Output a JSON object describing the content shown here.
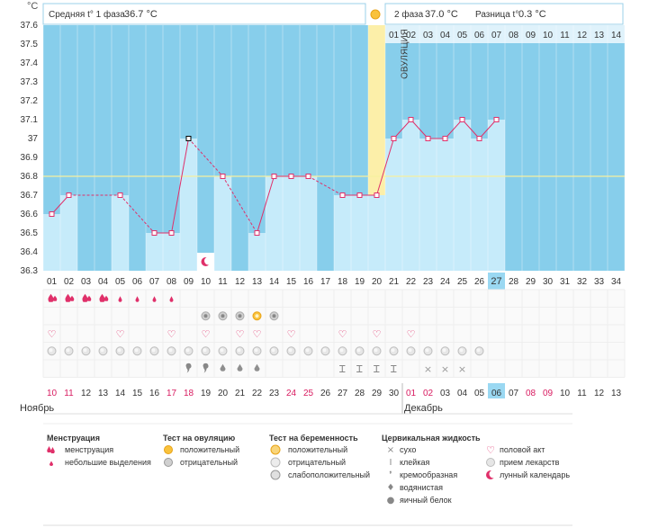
{
  "header": {
    "phase1_label": "Средняя t° 1 фаза",
    "phase1_value": "36.7 °C",
    "phase2_label": "2 фаза",
    "phase2_value": "37.0 °C",
    "diff_label": "Разница t°",
    "diff_value": "0.3 °C",
    "unit": "°C"
  },
  "chart_data": {
    "type": "line",
    "title": "",
    "ylabel": "°C",
    "ylim": [
      36.3,
      37.6
    ],
    "yticks": [
      "37.6",
      "37.5",
      "37.4",
      "37.3",
      "37.2",
      "37.1",
      "37",
      "36.9",
      "36.8",
      "36.7",
      "36.6",
      "36.5",
      "36.4",
      "36.3"
    ],
    "cycle_days": [
      "01",
      "02",
      "03",
      "04",
      "05",
      "06",
      "07",
      "08",
      "09",
      "10",
      "11",
      "12",
      "13",
      "14",
      "15",
      "16",
      "17",
      "18",
      "19",
      "20",
      "21",
      "22",
      "23",
      "24",
      "25",
      "26",
      "27",
      "28",
      "29",
      "30",
      "31",
      "32",
      "33",
      "34"
    ],
    "phase2_days": [
      "01",
      "02",
      "03",
      "04",
      "05",
      "06",
      "07",
      "08",
      "09",
      "10",
      "11",
      "12",
      "13",
      "14"
    ],
    "calendar_dates": [
      "10",
      "11",
      "12",
      "13",
      "14",
      "15",
      "16",
      "17",
      "18",
      "19",
      "20",
      "21",
      "22",
      "23",
      "24",
      "25",
      "26",
      "27",
      "28",
      "29",
      "30",
      "01",
      "02",
      "03",
      "04",
      "05",
      "06",
      "07",
      "08",
      "09",
      "10",
      "11",
      "12",
      "13"
    ],
    "weekend_dates_idx": [
      0,
      1,
      7,
      8,
      14,
      15,
      21,
      22,
      28,
      29
    ],
    "today_idx": 26,
    "months": [
      "Ноябрь",
      "Декабрь"
    ],
    "temperatures": [
      36.6,
      36.7,
      null,
      null,
      36.7,
      null,
      36.5,
      36.5,
      37.0,
      null,
      36.8,
      null,
      36.5,
      36.8,
      36.8,
      36.8,
      null,
      36.7,
      36.7,
      36.7,
      37.0,
      37.1,
      37.0,
      37.0,
      37.1,
      37.0,
      37.1,
      null,
      null,
      null,
      null,
      null,
      null,
      null
    ],
    "coverline": 36.8,
    "ovulation_day_idx": 19,
    "ovulation_label": "ОВУЛЯЦИЯ",
    "moon_day_idx": 9,
    "rows": {
      "menstruation": [
        "big",
        "big",
        "big",
        "big",
        "small",
        "small",
        "small",
        "small",
        "",
        "",
        "",
        "",
        "",
        "",
        "",
        "",
        "",
        "",
        "",
        "",
        "",
        "",
        "",
        "",
        "",
        "",
        "",
        "",
        "",
        "",
        "",
        "",
        "",
        ""
      ],
      "ovulation_test": [
        "",
        "",
        "",
        "",
        "",
        "",
        "",
        "",
        "",
        "neg",
        "neg",
        "neg",
        "pos",
        "neg",
        "",
        "",
        "",
        "",
        "",
        "",
        "",
        "",
        "",
        "",
        "",
        "",
        "",
        "",
        "",
        "",
        "",
        "",
        "",
        ""
      ],
      "sex": [
        true,
        false,
        false,
        false,
        true,
        false,
        false,
        true,
        false,
        true,
        false,
        true,
        true,
        false,
        true,
        false,
        false,
        true,
        false,
        true,
        false,
        true,
        false,
        false,
        false,
        false,
        false,
        false,
        false,
        false,
        false,
        false,
        false,
        false
      ],
      "meds": [
        true,
        true,
        true,
        true,
        true,
        true,
        true,
        true,
        true,
        true,
        true,
        true,
        true,
        true,
        true,
        true,
        true,
        true,
        true,
        true,
        true,
        true,
        true,
        true,
        true,
        true,
        false,
        false,
        false,
        false,
        false,
        false,
        false,
        false
      ],
      "fluid": [
        "",
        "",
        "",
        "",
        "",
        "",
        "",
        "",
        "creamy",
        "creamy",
        "watery",
        "watery",
        "watery",
        "",
        "",
        "",
        "",
        "sticky",
        "sticky",
        "sticky",
        "sticky",
        "",
        "dry",
        "dry",
        "dry",
        "",
        "",
        "",
        "",
        "",
        "",
        "",
        "",
        ""
      ]
    }
  },
  "legend": {
    "menstruation": {
      "title": "Менструация",
      "items": [
        "менструация",
        "небольшие выделения"
      ]
    },
    "ovulation_test": {
      "title": "Тест на овуляцию",
      "items": [
        "положительный",
        "отрицательный"
      ]
    },
    "pregnancy_test": {
      "title": "Тест на беременность",
      "items": [
        "положительный",
        "отрицательный",
        "слабоположительный"
      ]
    },
    "cervical": {
      "title": "Цервикальная жидкость",
      "items": [
        "сухо",
        "клейкая",
        "кремообразная",
        "водянистая",
        "яичный белок"
      ]
    },
    "other": {
      "items": [
        "половой акт",
        "прием лекарств",
        "лунный календарь"
      ]
    }
  },
  "colors": {
    "sky": "#87CEEB",
    "bar": "#C6EBFA",
    "line": "#E0306A",
    "ovulation": "#FCEFA9",
    "today": "#9AD8F2",
    "weekend": "#D81B60"
  }
}
